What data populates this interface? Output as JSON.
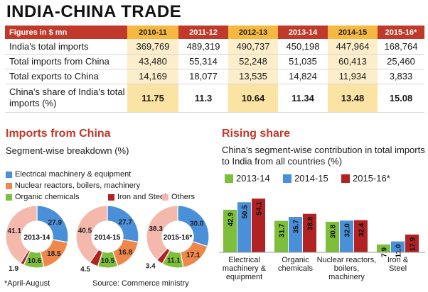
{
  "title": "INDIA-CHINA TRADE",
  "table": {
    "header": [
      "Figures in $ mn",
      "2010-11",
      "2011-12",
      "2012-13",
      "2013-14",
      "2014-15",
      "2015-16*"
    ],
    "highlight_cols": [
      1,
      3,
      5
    ],
    "rows": [
      {
        "label": "India's total imports",
        "values": [
          "369,769",
          "489,319",
          "490,737",
          "450,198",
          "447,964",
          "168,764"
        ]
      },
      {
        "label": "Total imports from China",
        "values": [
          "43,480",
          "55,314",
          "52,248",
          "51,035",
          "60,413",
          "25,460"
        ]
      },
      {
        "label": "Total exports to China",
        "values": [
          "14,169",
          "18,077",
          "13,535",
          "14,824",
          "11,934",
          "3,833"
        ]
      },
      {
        "label": "China's share of India's total imports (%)",
        "values": [
          "11.75",
          "11.3",
          "10.64",
          "11.34",
          "13.48",
          "15.08"
        ]
      }
    ]
  },
  "imports_section": {
    "title": "Imports from China",
    "subtitle": "Segment-wise breakdown (%)",
    "legend": [
      {
        "label": "Electrical machinery & equipment",
        "color": "#4a90d9"
      },
      {
        "label": "Nuclear reactors, boilers, machinery",
        "color": "#f0874a"
      },
      {
        "label": "Organic chemicals",
        "color": "#7dbf3a"
      },
      {
        "label": "Iron and Steel",
        "color": "#b22222"
      },
      {
        "label": "Others",
        "color": "#f4b8ac"
      }
    ],
    "note": "*April-August",
    "source": "Source: Commerce ministry"
  },
  "rising_section": {
    "title": "Rising share",
    "subtitle": "China's segment-wise contribution in total imports to India from all countries (%)"
  },
  "chart_data": [
    {
      "type": "pie",
      "variant": "donut",
      "center_label": "2013-14",
      "categories": [
        "Electrical machinery & equipment",
        "Nuclear reactors, boilers, machinery",
        "Organic chemicals",
        "Iron and Steel",
        "Others"
      ],
      "values": [
        27.9,
        18.5,
        10.6,
        1.9,
        41.1
      ],
      "labels": [
        "27.9",
        "18.5",
        "10.6",
        "1.9",
        "41.1"
      ],
      "colors": [
        "#4a90d9",
        "#f0874a",
        "#7dbf3a",
        "#b22222",
        "#f4b8ac"
      ]
    },
    {
      "type": "pie",
      "variant": "donut",
      "center_label": "2014-15",
      "categories": [
        "Electrical machinery & equipment",
        "Nuclear reactors, boilers, machinery",
        "Organic chemicals",
        "Iron and Steel",
        "Others"
      ],
      "values": [
        27.7,
        16.8,
        10.5,
        4.5,
        40.5
      ],
      "labels": [
        "27.7",
        "16.8",
        "10.5",
        "4.5",
        "40.5"
      ],
      "colors": [
        "#4a90d9",
        "#f0874a",
        "#7dbf3a",
        "#b22222",
        "#f4b8ac"
      ]
    },
    {
      "type": "pie",
      "variant": "donut",
      "center_label": "2015-16*",
      "categories": [
        "Electrical machinery & equipment",
        "Nuclear reactors, boilers, machinery",
        "Organic chemicals",
        "Iron and Steel",
        "Others"
      ],
      "values": [
        30.0,
        17.1,
        11.1,
        3.4,
        38.3
      ],
      "labels": [
        "30.0",
        "17.1",
        "11.1",
        "3.4",
        "38.3"
      ],
      "colors": [
        "#4a90d9",
        "#f0874a",
        "#7dbf3a",
        "#b22222",
        "#f4b8ac"
      ]
    },
    {
      "type": "bar",
      "categories": [
        "Electrical machinery & equipment",
        "Organic chemicals",
        "Nuclear reactors, boilers, machinery",
        "Iron & Steel"
      ],
      "category_lines": [
        [
          "Electrical",
          "machinery &",
          "equipment"
        ],
        [
          "Organic",
          "chemicals"
        ],
        [
          "Nuclear reactors,",
          "boilers,",
          "machinery"
        ],
        [
          "Iron &",
          "Steel"
        ]
      ],
      "series": [
        {
          "name": "2013-14",
          "color": "#7dbf3a",
          "values": [
            42.9,
            31.7,
            30.8,
            7.9
          ]
        },
        {
          "name": "2014-15",
          "color": "#4a90d9",
          "values": [
            50.5,
            35.7,
            32.0,
            11.0
          ]
        },
        {
          "name": "2015-16*",
          "color": "#b22222",
          "values": [
            54.1,
            38.8,
            32.4,
            17.9
          ]
        }
      ],
      "ylim": [
        0,
        60
      ],
      "grid": false
    }
  ]
}
